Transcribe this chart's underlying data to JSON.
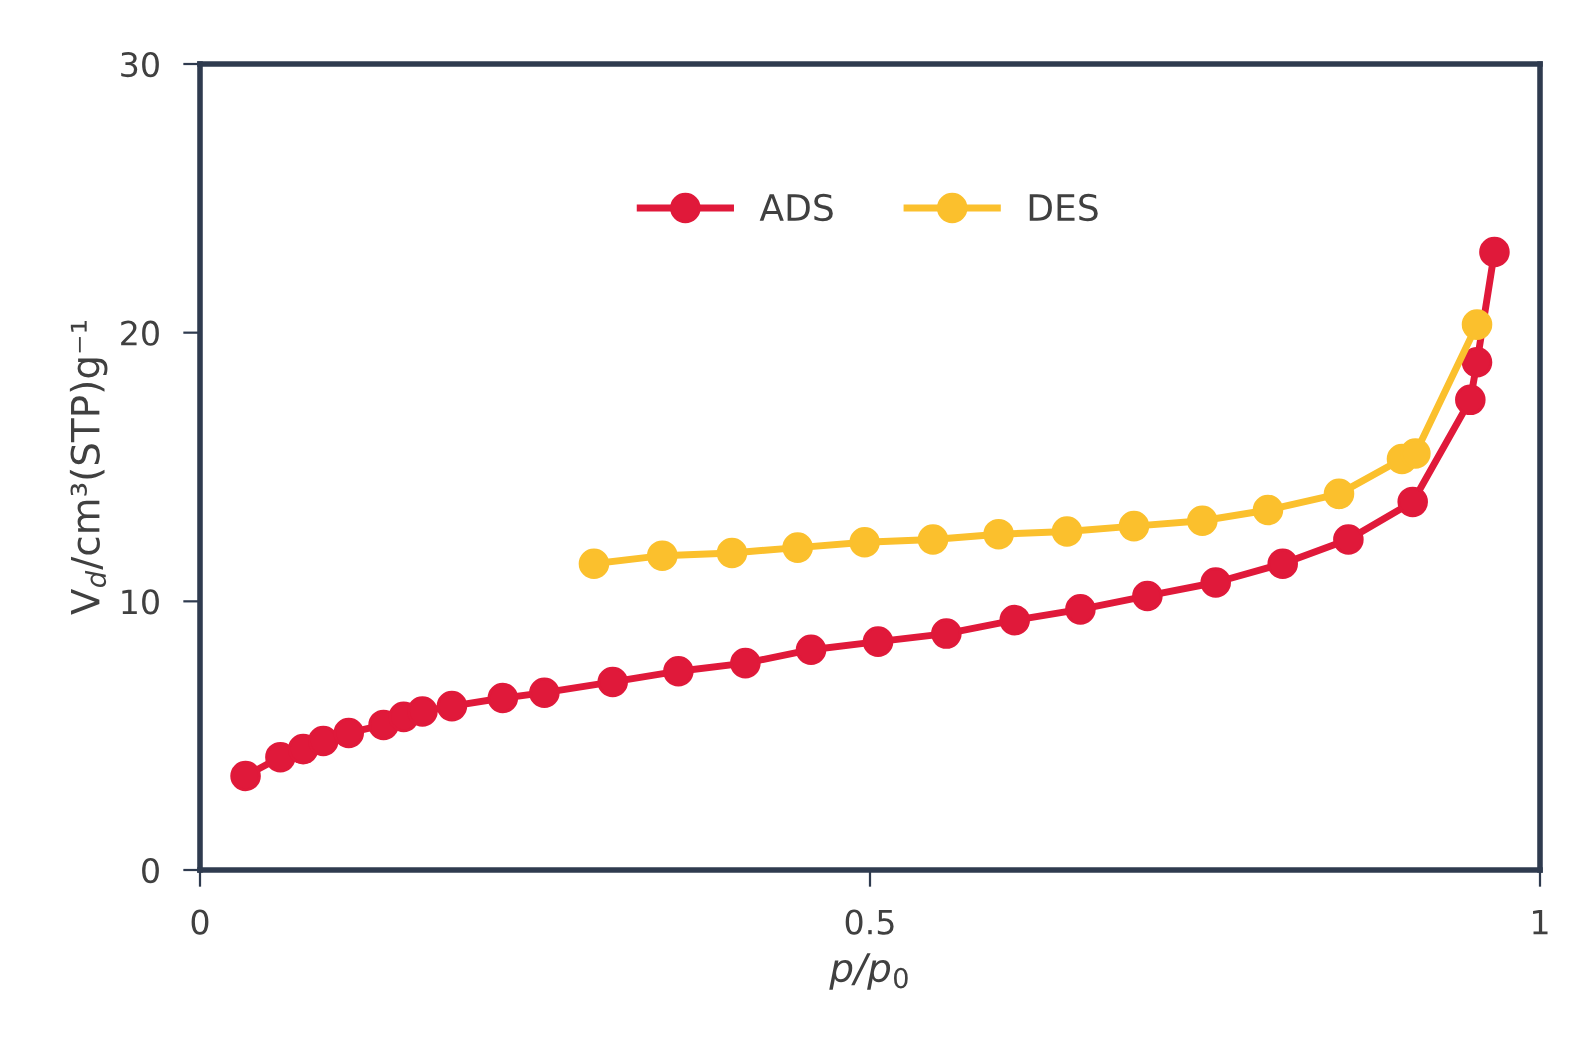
{
  "chart_data": {
    "type": "line",
    "xlabel": "p/p$_{0}$",
    "ylabel": "V$_{d}$/cm³(STP)g⁻¹",
    "xlim": [
      0,
      1
    ],
    "xticks": [
      0,
      0.5,
      1
    ],
    "ylim": [
      0,
      30
    ],
    "yticks": [
      0,
      10,
      20,
      30
    ],
    "grid": false,
    "legend": "top",
    "marker": "circle",
    "line_style": "solid",
    "series": [
      {
        "name": "ADS",
        "color": "#e0193a",
        "x": [
          0.034,
          0.06,
          0.077,
          0.092,
          0.111,
          0.137,
          0.152,
          0.166,
          0.188,
          0.226,
          0.257,
          0.308,
          0.357,
          0.407,
          0.456,
          0.506,
          0.557,
          0.608,
          0.657,
          0.707,
          0.758,
          0.808,
          0.857,
          0.905,
          0.948,
          0.953,
          0.966
        ],
        "values": [
          3.5,
          4.2,
          4.5,
          4.8,
          5.1,
          5.4,
          5.7,
          5.9,
          6.1,
          6.4,
          6.6,
          7.0,
          7.4,
          7.7,
          8.2,
          8.5,
          8.8,
          9.3,
          9.7,
          10.2,
          10.7,
          11.4,
          12.3,
          13.7,
          17.5,
          18.9,
          23.0
        ]
      },
      {
        "name": "DES",
        "color": "#fbc02d",
        "x": [
          0.294,
          0.345,
          0.397,
          0.446,
          0.496,
          0.547,
          0.596,
          0.647,
          0.697,
          0.748,
          0.797,
          0.85,
          0.897,
          0.907,
          0.953
        ],
        "values": [
          11.4,
          11.7,
          11.8,
          12.0,
          12.2,
          12.3,
          12.5,
          12.6,
          12.8,
          13.0,
          13.4,
          14.0,
          15.3,
          15.5,
          20.3
        ]
      }
    ]
  }
}
